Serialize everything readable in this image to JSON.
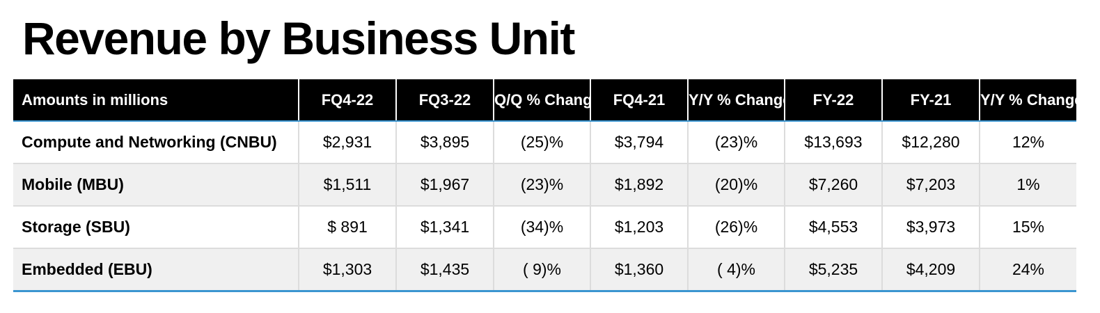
{
  "title": "Revenue by Business Unit",
  "colors": {
    "header_bg": "#000000",
    "header_text": "#ffffff",
    "accent_line": "#3a95d0",
    "row_alt_bg": "#f0f0f0",
    "grid_line": "#dcdcdc"
  },
  "table": {
    "headers": [
      "Amounts in millions",
      "FQ4-22",
      "FQ3-22",
      "Q/Q % Change",
      "FQ4-21",
      "Y/Y % Change",
      "FY-22",
      "FY-21",
      "Y/Y % Change"
    ],
    "rows": [
      {
        "label": "Compute and Networking (CNBU)",
        "cells": [
          "$2,931",
          "$3,895",
          "(25)%",
          "$3,794",
          "(23)%",
          "$13,693",
          "$12,280",
          "12%"
        ]
      },
      {
        "label": "Mobile (MBU)",
        "cells": [
          "$1,511",
          "$1,967",
          "(23)%",
          "$1,892",
          "(20)%",
          "$7,260",
          "$7,203",
          "1%"
        ]
      },
      {
        "label": "Storage (SBU)",
        "cells": [
          "$  891",
          "$1,341",
          "(34)%",
          "$1,203",
          "(26)%",
          "$4,553",
          "$3,973",
          "15%"
        ]
      },
      {
        "label": "Embedded (EBU)",
        "cells": [
          "$1,303",
          "$1,435",
          "( 9)%",
          "$1,360",
          "( 4)%",
          "$5,235",
          "$4,209",
          "24%"
        ]
      }
    ]
  }
}
